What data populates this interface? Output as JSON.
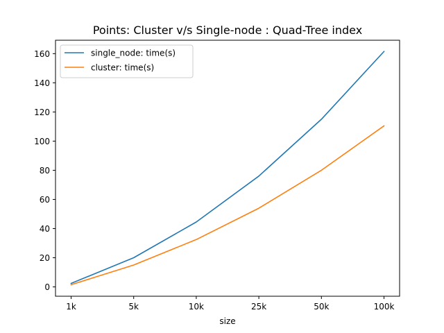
{
  "chart_data": {
    "type": "line",
    "title": "Points: Cluster v/s Single-node : Quad-Tree index",
    "xlabel": "size",
    "ylabel": "",
    "categories": [
      "1k",
      "5k",
      "10k",
      "25k",
      "50k",
      "100k"
    ],
    "yticks": [
      0,
      20,
      40,
      60,
      80,
      100,
      120,
      140,
      160
    ],
    "ylim": [
      -6.4,
      169.2
    ],
    "grid": false,
    "legend_position": "top-left",
    "series": [
      {
        "name": "single_node: time(s)",
        "color": "#1f77b4",
        "values": [
          2.4,
          20,
          44.5,
          76,
          115,
          161.5
        ]
      },
      {
        "name": "cluster: time(s)",
        "color": "#ff7f0e",
        "values": [
          1.5,
          15,
          32.5,
          54,
          80,
          110.5
        ]
      }
    ]
  }
}
